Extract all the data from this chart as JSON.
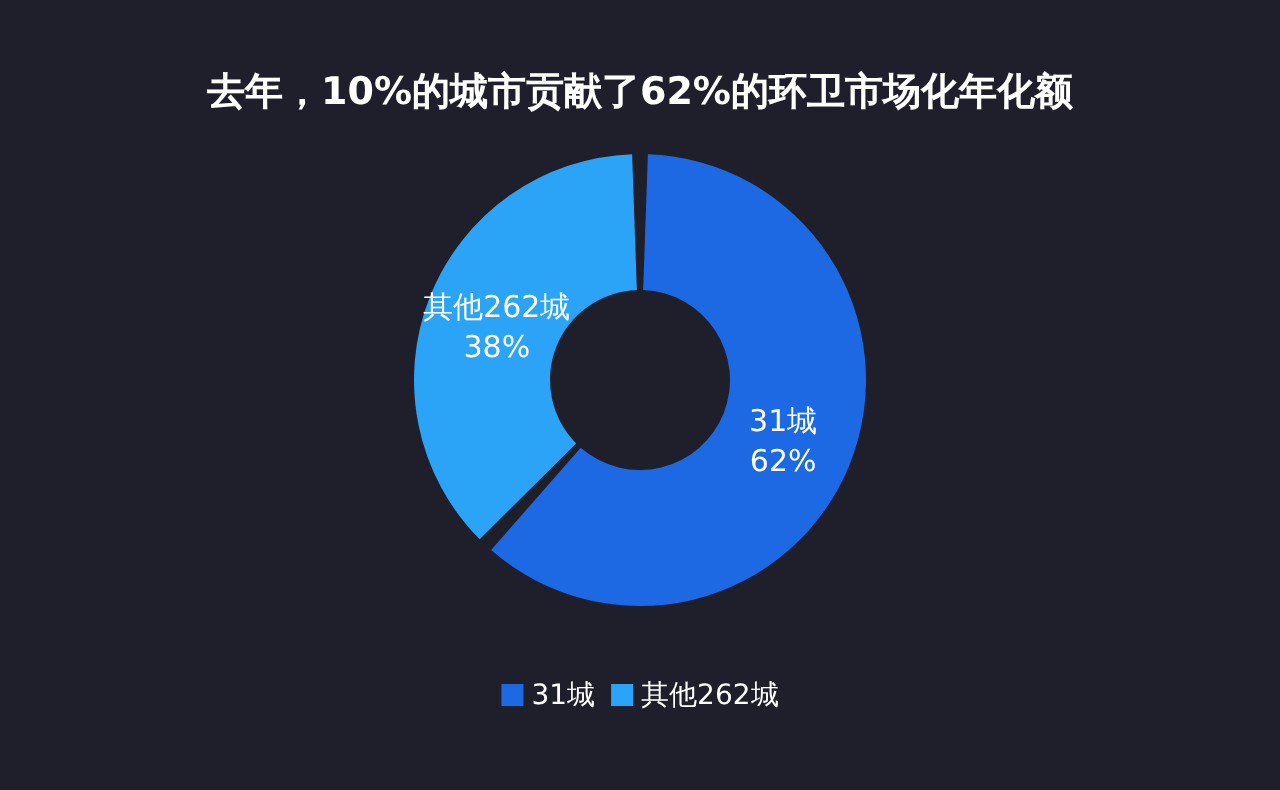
{
  "chart_data": {
    "type": "donut",
    "title": "去年，10%的城市贡献了62%的环卫市场化年化额",
    "categories": [
      "31城",
      "其他262城"
    ],
    "values": [
      62,
      38
    ],
    "colors": [
      "#1c69e3",
      "#2ba3f7"
    ],
    "value_labels": [
      "62%",
      "38%"
    ],
    "legend": "bottom"
  }
}
